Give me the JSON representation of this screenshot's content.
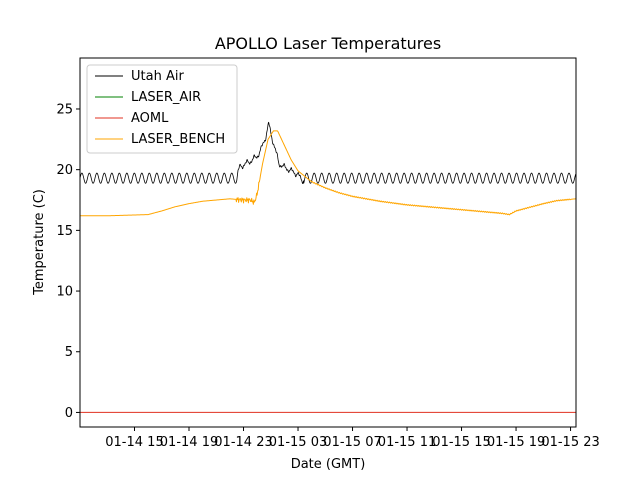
{
  "chart_data": {
    "type": "line",
    "title": "APOLLO Laser Temperatures",
    "xlabel": "Date (GMT)",
    "ylabel": "Temperature (C)",
    "x_unit": "hours since 01-14 11:00 GMT",
    "xlim": [
      0,
      36.4
    ],
    "ylim": [
      -1.2,
      29.2
    ],
    "yticks": [
      0,
      5,
      10,
      15,
      20,
      25
    ],
    "xticks": [
      {
        "x": 4,
        "label": "01-14 15"
      },
      {
        "x": 8,
        "label": "01-14 19"
      },
      {
        "x": 12,
        "label": "01-14 23"
      },
      {
        "x": 16,
        "label": "01-15 03"
      },
      {
        "x": 20,
        "label": "01-15 07"
      },
      {
        "x": 24,
        "label": "01-15 11"
      },
      {
        "x": 28,
        "label": "01-15 15"
      },
      {
        "x": 32,
        "label": "01-15 19"
      },
      {
        "x": 36,
        "label": "01-15 23"
      }
    ],
    "legend_position": "top-left",
    "series": [
      {
        "name": "Utah Air",
        "color": "#000000",
        "style": "oscillating around 19.3 C with amplitude ~0.4 and period ~0.55 h; warm excursion peaking near 13.9 h",
        "x": [
          0,
          11.5,
          11.7,
          12.0,
          12.5,
          13.0,
          13.3,
          13.6,
          13.85,
          14.0,
          14.3,
          14.6,
          15.0,
          15.5,
          16.0,
          16.3,
          16.5,
          17.0,
          20.0,
          25.0,
          30.0,
          36.4
        ],
        "y": [
          19.3,
          19.3,
          20.2,
          20.4,
          20.7,
          21.1,
          21.7,
          22.6,
          23.8,
          23.0,
          21.8,
          20.5,
          20.2,
          19.9,
          19.6,
          19.1,
          19.3,
          19.3,
          19.3,
          19.3,
          19.3,
          19.3
        ]
      },
      {
        "name": "LASER_AIR",
        "color": "#008000",
        "x": [],
        "y": []
      },
      {
        "name": "AOML",
        "color": "#e03020",
        "x": [
          0,
          36.4
        ],
        "y": [
          0,
          0
        ]
      },
      {
        "name": "LASER_BENCH",
        "color": "#ffa500",
        "x": [
          0,
          2.0,
          5.0,
          6.0,
          7.0,
          8.0,
          9.0,
          10.0,
          11.0,
          11.5,
          12.0,
          12.5,
          12.8,
          13.0,
          13.4,
          13.8,
          14.2,
          14.5,
          15.0,
          15.5,
          16.0,
          17.0,
          18.0,
          19.0,
          20.0,
          22.0,
          24.0,
          26.0,
          28.0,
          30.0,
          31.0,
          31.5,
          32.0,
          33.0,
          34.0,
          35.0,
          36.4
        ],
        "y": [
          16.2,
          16.2,
          16.3,
          16.6,
          16.95,
          17.2,
          17.4,
          17.5,
          17.6,
          17.55,
          17.5,
          17.5,
          17.3,
          18.0,
          20.5,
          22.5,
          23.2,
          23.2,
          22.0,
          20.8,
          19.9,
          19.0,
          18.5,
          18.1,
          17.8,
          17.4,
          17.1,
          16.9,
          16.7,
          16.5,
          16.4,
          16.3,
          16.6,
          16.9,
          17.2,
          17.45,
          17.6
        ]
      }
    ]
  }
}
